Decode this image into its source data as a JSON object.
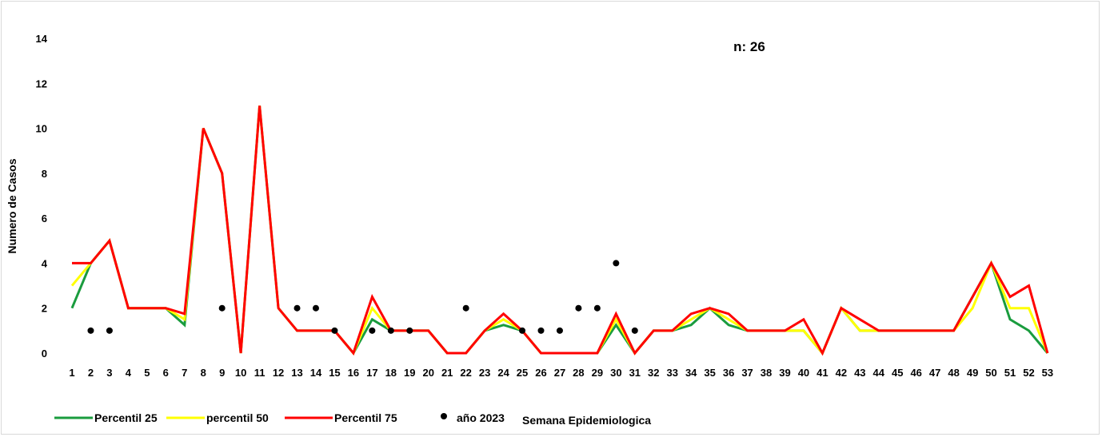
{
  "chart_data": {
    "type": "line",
    "annotation": "n: 26",
    "xlabel": "Semana Epidemiologica",
    "ylabel": "Numero de Casos",
    "ylim": [
      0,
      14
    ],
    "yticks": [
      0,
      2,
      4,
      6,
      8,
      10,
      12,
      14
    ],
    "grid": false,
    "legend_position": "bottom-left",
    "categories": [
      "1",
      "2",
      "3",
      "4",
      "5",
      "6",
      "7",
      "8",
      "9",
      "10",
      "11",
      "12",
      "13",
      "14",
      "15",
      "16",
      "17",
      "18",
      "19",
      "20",
      "21",
      "22",
      "23",
      "24",
      "25",
      "26",
      "27",
      "28",
      "29",
      "30",
      "31",
      "32",
      "33",
      "34",
      "35",
      "36",
      "37",
      "38",
      "39",
      "40",
      "41",
      "42",
      "43",
      "44",
      "45",
      "46",
      "47",
      "48",
      "49",
      "50",
      "51",
      "52",
      "53"
    ],
    "series": [
      {
        "name": "Percentil 25",
        "type": "line",
        "color": "#1a9c3e",
        "values": [
          2,
          4,
          5,
          2,
          2,
          2,
          1.25,
          10,
          8,
          0,
          11,
          2,
          1,
          1,
          1,
          0,
          1.5,
          1,
          1,
          1,
          0,
          0,
          1,
          1.25,
          1,
          0,
          0,
          0,
          0,
          1.25,
          0,
          1,
          1,
          1.25,
          2,
          1.25,
          1,
          1,
          1,
          1,
          0,
          2,
          1,
          1,
          1,
          1,
          1,
          1,
          2.5,
          4,
          1.5,
          1,
          0
        ]
      },
      {
        "name": "percentil 50",
        "type": "line",
        "color": "#ffff00",
        "values": [
          3,
          4,
          5,
          2,
          2,
          2,
          1.5,
          10,
          8,
          0,
          11,
          2,
          1,
          1,
          1,
          0,
          2,
          1,
          1,
          1,
          0,
          0,
          1,
          1.5,
          1,
          0,
          0,
          0,
          0,
          1.5,
          0,
          1,
          1,
          1.5,
          2,
          1.5,
          1,
          1,
          1,
          1,
          0,
          2,
          1,
          1,
          1,
          1,
          1,
          1,
          2,
          4,
          2,
          2,
          0
        ]
      },
      {
        "name": "Percentil 75",
        "type": "line",
        "color": "#ff0000",
        "values": [
          4,
          4,
          5,
          2,
          2,
          2,
          1.75,
          10,
          8,
          0,
          11,
          2,
          1,
          1,
          1,
          0,
          2.5,
          1,
          1,
          1,
          0,
          0,
          1,
          1.75,
          1,
          0,
          0,
          0,
          0,
          1.75,
          0,
          1,
          1,
          1.75,
          2,
          1.75,
          1,
          1,
          1,
          1.5,
          0,
          2,
          1.5,
          1,
          1,
          1,
          1,
          1,
          2.5,
          4,
          2.5,
          3,
          0
        ]
      },
      {
        "name": "año 2023",
        "type": "scatter",
        "color": "#000000",
        "points": [
          [
            2,
            1
          ],
          [
            3,
            1
          ],
          [
            9,
            2
          ],
          [
            13,
            2
          ],
          [
            14,
            2
          ],
          [
            15,
            1
          ],
          [
            17,
            1
          ],
          [
            18,
            1
          ],
          [
            19,
            1
          ],
          [
            22,
            2
          ],
          [
            25,
            1
          ],
          [
            26,
            1
          ],
          [
            27,
            1
          ],
          [
            28,
            2
          ],
          [
            29,
            2
          ],
          [
            30,
            4
          ],
          [
            31,
            1
          ]
        ]
      }
    ]
  }
}
